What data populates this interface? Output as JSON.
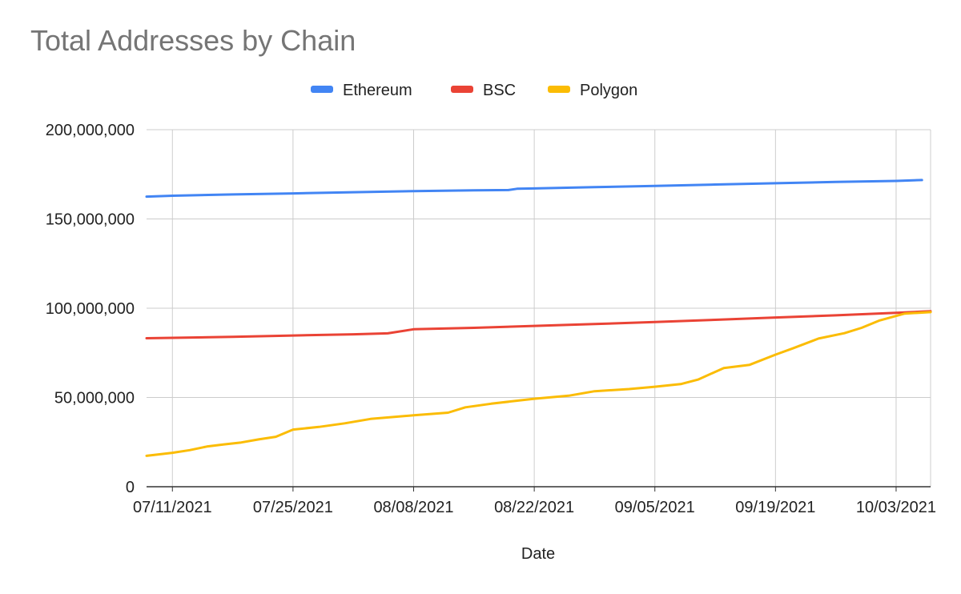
{
  "chart_data": {
    "type": "line",
    "title": "Total Addresses by Chain",
    "xlabel": "Date",
    "ylabel": "",
    "ylim": [
      0,
      200000000
    ],
    "yticks": [
      0,
      50000000,
      100000000,
      150000000,
      200000000
    ],
    "ytick_labels": [
      "0",
      "50,000,000",
      "100,000,000",
      "150,000,000",
      "200,000,000"
    ],
    "xticks": [
      "2021-07-11",
      "2021-07-25",
      "2021-08-08",
      "2021-08-22",
      "2021-09-05",
      "2021-09-19",
      "2021-10-03"
    ],
    "xtick_labels": [
      "07/11/2021",
      "07/25/2021",
      "08/08/2021",
      "08/22/2021",
      "09/05/2021",
      "09/19/2021",
      "10/03/2021"
    ],
    "xlim": [
      "2021-07-08",
      "2021-10-07"
    ],
    "grid": true,
    "legend_position": "top",
    "series": [
      {
        "name": "Ethereum",
        "color": "#4285f4",
        "points": [
          [
            "2021-07-08",
            162500000
          ],
          [
            "2021-07-11",
            163000000
          ],
          [
            "2021-07-18",
            163700000
          ],
          [
            "2021-07-25",
            164300000
          ],
          [
            "2021-08-01",
            165000000
          ],
          [
            "2021-08-08",
            165600000
          ],
          [
            "2021-08-15",
            166000000
          ],
          [
            "2021-08-19",
            166200000
          ],
          [
            "2021-08-20",
            166900000
          ],
          [
            "2021-08-22",
            167100000
          ],
          [
            "2021-08-29",
            167800000
          ],
          [
            "2021-09-05",
            168500000
          ],
          [
            "2021-09-12",
            169300000
          ],
          [
            "2021-09-19",
            170000000
          ],
          [
            "2021-09-26",
            170700000
          ],
          [
            "2021-10-03",
            171300000
          ],
          [
            "2021-10-06",
            171800000
          ]
        ]
      },
      {
        "name": "BSC",
        "color": "#ea4335",
        "points": [
          [
            "2021-07-08",
            83200000
          ],
          [
            "2021-07-11",
            83400000
          ],
          [
            "2021-07-18",
            84000000
          ],
          [
            "2021-07-25",
            84700000
          ],
          [
            "2021-08-01",
            85400000
          ],
          [
            "2021-08-05",
            85900000
          ],
          [
            "2021-08-08",
            88200000
          ],
          [
            "2021-08-15",
            89000000
          ],
          [
            "2021-08-22",
            90100000
          ],
          [
            "2021-08-29",
            91100000
          ],
          [
            "2021-09-05",
            92300000
          ],
          [
            "2021-09-12",
            93500000
          ],
          [
            "2021-09-19",
            94800000
          ],
          [
            "2021-09-26",
            96000000
          ],
          [
            "2021-10-03",
            97400000
          ],
          [
            "2021-10-07",
            98300000
          ]
        ]
      },
      {
        "name": "Polygon",
        "color": "#fbbc04",
        "points": [
          [
            "2021-07-08",
            17300000
          ],
          [
            "2021-07-11",
            19000000
          ],
          [
            "2021-07-13",
            20500000
          ],
          [
            "2021-07-15",
            22500000
          ],
          [
            "2021-07-17",
            23700000
          ],
          [
            "2021-07-19",
            24800000
          ],
          [
            "2021-07-21",
            26500000
          ],
          [
            "2021-07-23",
            28000000
          ],
          [
            "2021-07-25",
            32000000
          ],
          [
            "2021-07-28",
            33500000
          ],
          [
            "2021-07-31",
            35500000
          ],
          [
            "2021-08-03",
            38000000
          ],
          [
            "2021-08-08",
            40000000
          ],
          [
            "2021-08-12",
            41500000
          ],
          [
            "2021-08-14",
            44500000
          ],
          [
            "2021-08-17",
            46500000
          ],
          [
            "2021-08-22",
            49300000
          ],
          [
            "2021-08-26",
            51000000
          ],
          [
            "2021-08-29",
            53500000
          ],
          [
            "2021-09-02",
            54700000
          ],
          [
            "2021-09-05",
            56000000
          ],
          [
            "2021-09-08",
            57500000
          ],
          [
            "2021-09-10",
            60000000
          ],
          [
            "2021-09-13",
            66500000
          ],
          [
            "2021-09-16",
            68300000
          ],
          [
            "2021-09-19",
            74000000
          ],
          [
            "2021-09-21",
            77500000
          ],
          [
            "2021-09-24",
            83000000
          ],
          [
            "2021-09-27",
            86000000
          ],
          [
            "2021-09-29",
            89000000
          ],
          [
            "2021-10-01",
            93000000
          ],
          [
            "2021-10-04",
            97000000
          ],
          [
            "2021-10-07",
            97800000
          ]
        ]
      }
    ]
  }
}
